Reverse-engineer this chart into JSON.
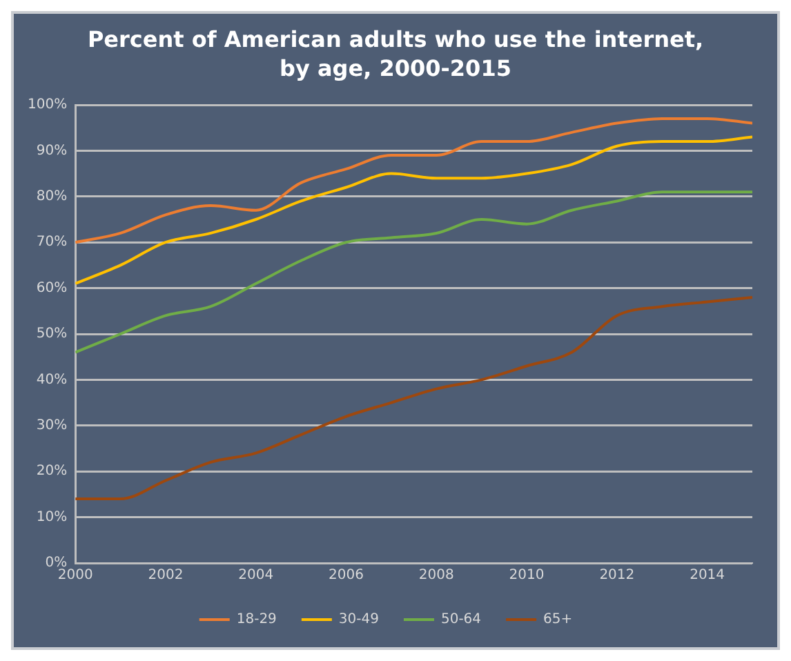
{
  "chart_data": {
    "type": "line",
    "title": "Percent of American adults who use the internet, by age, 2000-2015",
    "x": [
      2000,
      2001,
      2002,
      2003,
      2004,
      2005,
      2006,
      2007,
      2008,
      2009,
      2010,
      2011,
      2012,
      2013,
      2014,
      2015
    ],
    "series": [
      {
        "name": "18-29",
        "color": "#ed7d31",
        "values": [
          70,
          72,
          76,
          78,
          77,
          83,
          86,
          89,
          89,
          92,
          92,
          94,
          96,
          97,
          97,
          96
        ]
      },
      {
        "name": "30-49",
        "color": "#ffc000",
        "values": [
          61,
          65,
          70,
          72,
          75,
          79,
          82,
          85,
          84,
          84,
          85,
          87,
          91,
          92,
          92,
          93
        ]
      },
      {
        "name": "50-64",
        "color": "#70ad47",
        "values": [
          46,
          50,
          54,
          56,
          61,
          66,
          70,
          71,
          72,
          75,
          74,
          77,
          79,
          81,
          81,
          81
        ]
      },
      {
        "name": "65+",
        "color": "#9e480e",
        "values": [
          14,
          14,
          18,
          22,
          24,
          28,
          32,
          35,
          38,
          40,
          43,
          46,
          54,
          56,
          57,
          58
        ]
      }
    ],
    "xlim": [
      2000,
      2015
    ],
    "xticks": [
      2000,
      2002,
      2004,
      2006,
      2008,
      2010,
      2012,
      2014
    ],
    "ylim": [
      0,
      100
    ],
    "yticks": [
      {
        "value": 0,
        "label": "0%"
      },
      {
        "value": 10,
        "label": "10%"
      },
      {
        "value": 20,
        "label": "20%"
      },
      {
        "value": 30,
        "label": "30%"
      },
      {
        "value": 40,
        "label": "40%"
      },
      {
        "value": 50,
        "label": "50%"
      },
      {
        "value": 60,
        "label": "60%"
      },
      {
        "value": 70,
        "label": "70%"
      },
      {
        "value": 80,
        "label": "80%"
      },
      {
        "value": 90,
        "label": "90%"
      },
      {
        "value": 100,
        "label": "100%"
      }
    ],
    "grid": "y",
    "legend": "bottom",
    "marker": "none",
    "line_style": "solid"
  }
}
